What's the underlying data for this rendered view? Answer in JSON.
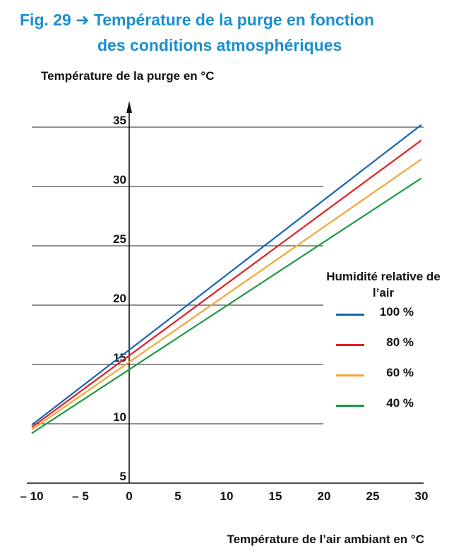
{
  "figure": {
    "title_line1": "Fig. 29 ➜ Température de la purge en fonction",
    "title_line2": "des conditions atmosphériques"
  },
  "chart_data": {
    "type": "line",
    "ylabel": "Température de la purge en °C",
    "xlabel": "Température de l’air ambiant en °C",
    "xlim": [
      -10,
      30
    ],
    "ylim": [
      5,
      35
    ],
    "x_ticks": [
      -10,
      -5,
      0,
      5,
      10,
      15,
      20,
      25,
      30
    ],
    "x_tick_labels": [
      "– 10",
      "– 5",
      "0",
      "5",
      "10",
      "15",
      "20",
      "25",
      "30"
    ],
    "y_ticks": [
      5,
      10,
      15,
      20,
      25,
      30,
      35
    ],
    "y_tick_labels": [
      "5",
      "10",
      "15",
      "20",
      "25",
      "30",
      "35"
    ],
    "grid": "horizontal",
    "legend_title": "Humidité relative de l’air",
    "legend_placement": "right",
    "series": [
      {
        "name": "100 %",
        "color": "#1565b4",
        "x": [
          -10,
          30
        ],
        "y": [
          9.9,
          35.2
        ]
      },
      {
        "name": "80 %",
        "color": "#e31e24",
        "x": [
          -10,
          30
        ],
        "y": [
          9.7,
          33.9
        ]
      },
      {
        "name": "60 %",
        "color": "#f7a535",
        "x": [
          -10,
          30
        ],
        "y": [
          9.5,
          32.3
        ]
      },
      {
        "name": "40 %",
        "color": "#1e9a44",
        "x": [
          -10,
          30
        ],
        "y": [
          9.2,
          30.7
        ]
      }
    ]
  }
}
